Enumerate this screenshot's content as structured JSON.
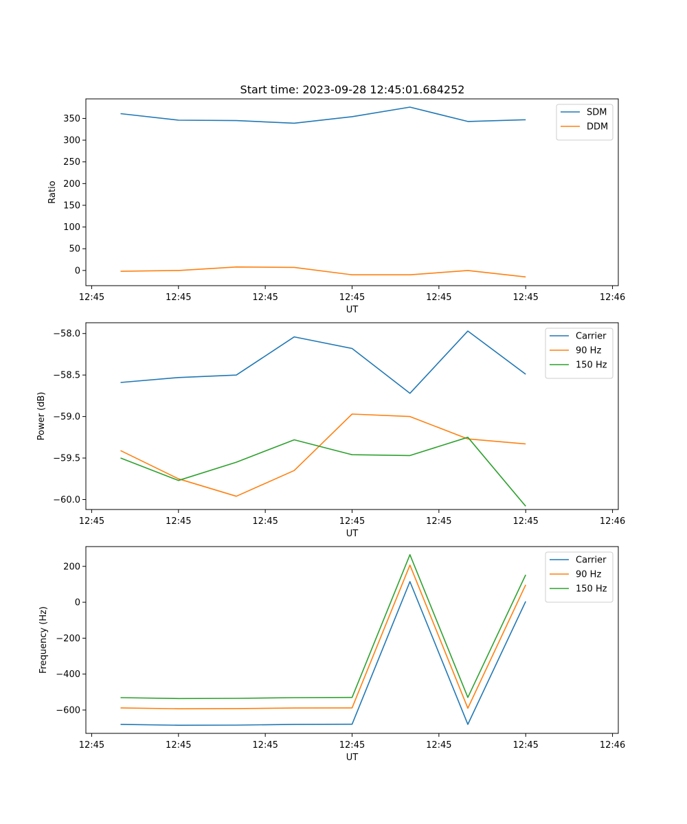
{
  "figure_title": "Start time: 2023-09-28 12:45:01.684252",
  "colors": {
    "blue": "#1f77b4",
    "orange": "#ff7f0e",
    "green": "#2ca02c"
  },
  "chart_data": [
    {
      "type": "line",
      "title": "Start time: 2023-09-28 12:45:01.684252",
      "xlabel": "UT",
      "ylabel": "Ratio",
      "xlim": [
        -0.6,
        8.6
      ],
      "ylim": [
        -35,
        395
      ],
      "x": [
        0,
        1,
        2,
        3,
        4,
        5,
        6,
        7
      ],
      "x_ticks": [
        -0.5,
        1,
        2.5,
        4,
        5.5,
        7,
        8.5
      ],
      "x_tick_labels": [
        "12:45",
        "12:45",
        "12:45",
        "12:45",
        "12:45",
        "12:45",
        "12:46"
      ],
      "y_ticks": [
        0,
        50,
        100,
        150,
        200,
        250,
        300,
        350
      ],
      "y_tick_labels": [
        "0",
        "50",
        "100",
        "150",
        "200",
        "250",
        "300",
        "350"
      ],
      "legend": "upper right",
      "series": [
        {
          "name": "SDM",
          "color": "#1f77b4",
          "values": [
            361,
            346,
            345,
            339,
            354,
            376,
            343,
            347
          ]
        },
        {
          "name": "DDM",
          "color": "#ff7f0e",
          "values": [
            -2,
            0,
            8,
            7,
            -10,
            -10,
            0,
            -15
          ]
        }
      ]
    },
    {
      "type": "line",
      "title": "",
      "xlabel": "UT",
      "ylabel": "Power (dB)",
      "xlim": [
        -0.6,
        8.6
      ],
      "ylim": [
        -60.12,
        -57.87
      ],
      "x": [
        0,
        1,
        2,
        3,
        4,
        5,
        6,
        7
      ],
      "x_ticks": [
        -0.5,
        1,
        2.5,
        4,
        5.5,
        7,
        8.5
      ],
      "x_tick_labels": [
        "12:45",
        "12:45",
        "12:45",
        "12:45",
        "12:45",
        "12:45",
        "12:46"
      ],
      "y_ticks": [
        -60.0,
        -59.5,
        -59.0,
        -58.5,
        -58.0
      ],
      "y_tick_labels": [
        "−60.0",
        "−59.5",
        "−59.0",
        "−58.5",
        "−58.0"
      ],
      "legend": "upper right",
      "series": [
        {
          "name": "Carrier",
          "color": "#1f77b4",
          "values": [
            -58.59,
            -58.53,
            -58.5,
            -58.04,
            -58.18,
            -58.72,
            -57.97,
            -58.49
          ]
        },
        {
          "name": "90 Hz",
          "color": "#ff7f0e",
          "values": [
            -59.41,
            -59.75,
            -59.96,
            -59.65,
            -58.97,
            -59.0,
            -59.27,
            -59.33
          ]
        },
        {
          "name": "150 Hz",
          "color": "#2ca02c",
          "values": [
            -59.5,
            -59.77,
            -59.55,
            -59.28,
            -59.46,
            -59.47,
            -59.25,
            -60.08
          ]
        }
      ]
    },
    {
      "type": "line",
      "title": "",
      "xlabel": "UT",
      "ylabel": "Frequency (Hz)",
      "xlim": [
        -0.6,
        8.6
      ],
      "ylim": [
        -730,
        310
      ],
      "x": [
        0,
        1,
        2,
        3,
        4,
        5,
        6,
        7
      ],
      "x_ticks": [
        -0.5,
        1,
        2.5,
        4,
        5.5,
        7,
        8.5
      ],
      "x_tick_labels": [
        "12:45",
        "12:45",
        "12:45",
        "12:45",
        "12:45",
        "12:45",
        "12:46"
      ],
      "y_ticks": [
        -600,
        -400,
        -200,
        0,
        200
      ],
      "y_tick_labels": [
        "−600",
        "−400",
        "−200",
        "0",
        "200"
      ],
      "legend": "upper right",
      "series": [
        {
          "name": "Carrier",
          "color": "#1f77b4",
          "values": [
            -680,
            -685,
            -684,
            -680,
            -679,
            115,
            -680,
            5
          ]
        },
        {
          "name": "90 Hz",
          "color": "#ff7f0e",
          "values": [
            -588,
            -593,
            -592,
            -589,
            -588,
            207,
            -590,
            97
          ]
        },
        {
          "name": "150 Hz",
          "color": "#2ca02c",
          "values": [
            -531,
            -536,
            -535,
            -531,
            -530,
            265,
            -530,
            153
          ]
        }
      ]
    }
  ]
}
